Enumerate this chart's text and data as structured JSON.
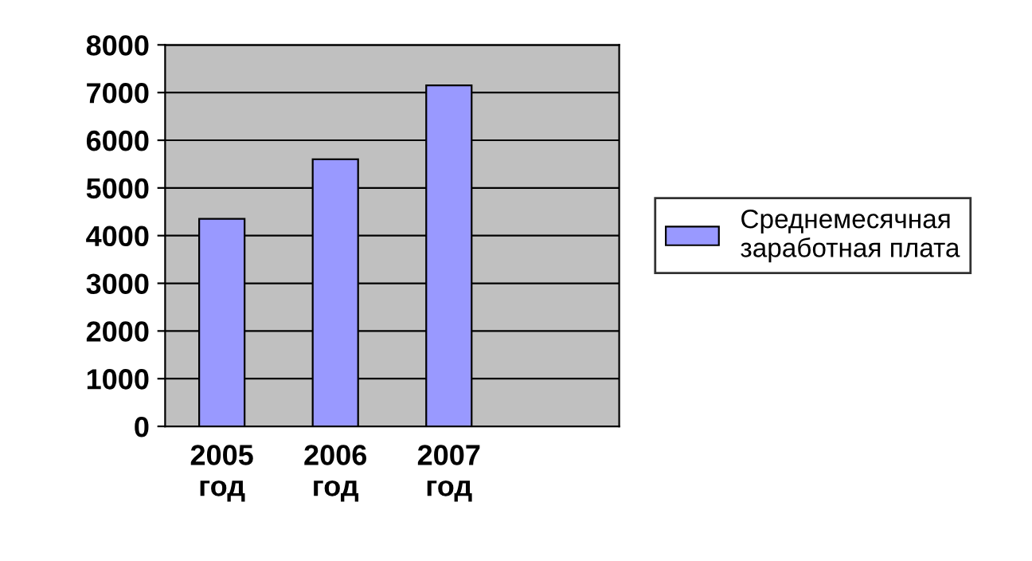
{
  "chart_data": {
    "type": "bar",
    "categories": [
      "2005\nгод",
      "2006\nгод",
      "2007\nгод",
      null
    ],
    "series": [
      {
        "name": "Среднемесячная\nзаработная плата",
        "color": "#9999ff",
        "values": [
          4350,
          5600,
          7150,
          null
        ]
      }
    ],
    "ylim": [
      0,
      8000
    ],
    "yticks": [
      0,
      1000,
      2000,
      3000,
      4000,
      5000,
      6000,
      7000,
      8000
    ],
    "grid": "y",
    "legend": "right"
  }
}
